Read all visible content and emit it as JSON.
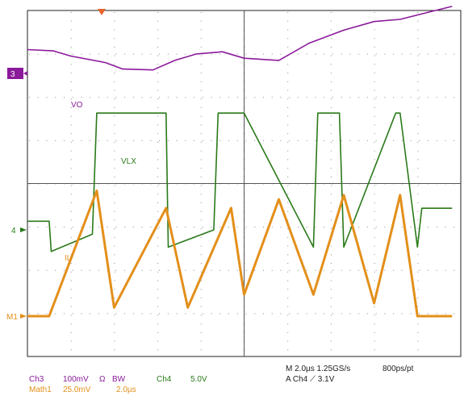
{
  "chart_data": {
    "type": "line",
    "title": "",
    "xlabel": "",
    "ylabel": "",
    "grid": true,
    "timebase": "2.0µs/div",
    "markers": {
      "ch3": "3",
      "ch4": "4",
      "math1": "M1"
    },
    "series": [
      {
        "name": "VO",
        "color": "#8b1a9b",
        "x": [
          0,
          0.6,
          1.0,
          1.8,
          2.2,
          2.9,
          3.4,
          3.9,
          4.5,
          5.0,
          5.8,
          6.5,
          7.3,
          8.0,
          8.6,
          9.2,
          9.8
        ],
        "y": [
          0.55,
          0.52,
          0.4,
          0.25,
          0.1,
          0.08,
          0.3,
          0.45,
          0.5,
          0.35,
          0.3,
          0.7,
          1.0,
          1.2,
          1.25,
          1.4,
          1.55
        ]
      },
      {
        "name": "VLX",
        "color": "#2a7a1a",
        "x": [
          0,
          0.5,
          0.55,
          1.5,
          1.6,
          3.2,
          3.25,
          4.3,
          4.4,
          5.0,
          6.6,
          6.7,
          7.2,
          7.3,
          8.5,
          8.6,
          9.0,
          9.1,
          9.8
        ],
        "y": [
          0.2,
          0.2,
          -0.5,
          -0.1,
          2.7,
          2.7,
          -0.4,
          0.0,
          2.7,
          2.7,
          -0.4,
          2.7,
          2.7,
          -0.4,
          2.7,
          2.7,
          -0.4,
          0.5,
          0.5
        ]
      },
      {
        "name": "IL",
        "color": "#e38f1a",
        "x": [
          0,
          0.5,
          1.6,
          2.0,
          3.2,
          3.7,
          4.7,
          5.0,
          5.8,
          6.6,
          7.3,
          8.0,
          8.6,
          9.0,
          9.8
        ],
        "y": [
          0.0,
          0.0,
          2.9,
          0.2,
          2.5,
          0.2,
          2.5,
          0.5,
          2.7,
          0.5,
          2.8,
          0.3,
          2.8,
          0.0,
          0.0
        ]
      }
    ],
    "labels": {
      "vo": "VO",
      "vlx": "VLX",
      "il": "IL"
    },
    "readout": {
      "ch3_name": "Ch3",
      "ch3_scale": "100mV",
      "ch3_coupling": "Ω",
      "bw": "BW",
      "ch4_name": "Ch4",
      "ch4_scale": "5.0V",
      "math1_name": "Math1",
      "math1_scale": "25.0mV",
      "math1_time": "2.0µs",
      "m_line": "M 2.0µs 1.25GS/s",
      "record": "800ps/pt",
      "trigger": "A  Ch4  ⟋  3.1V"
    }
  }
}
